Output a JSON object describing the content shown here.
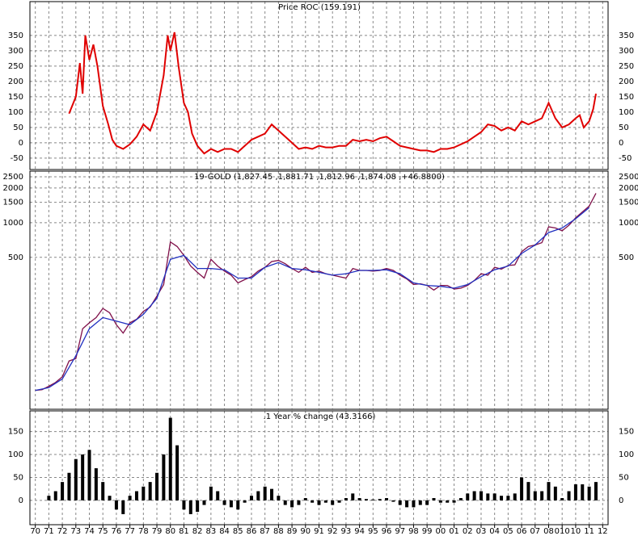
{
  "chart_data": [
    {
      "type": "line",
      "title": "Price ROC (159.191)",
      "xlim": [
        1969.6,
        2012.4
      ],
      "ylim": [
        -87,
        460
      ],
      "yticks": [
        -50,
        0,
        50,
        100,
        150,
        200,
        250,
        300,
        350
      ],
      "grid": true,
      "x": [
        1972.5,
        1973.0,
        1973.3,
        1973.5,
        1973.7,
        1974.0,
        1974.3,
        1974.6,
        1975.0,
        1975.4,
        1975.7,
        1976.0,
        1976.5,
        1977.0,
        1977.5,
        1978.0,
        1978.5,
        1979.0,
        1979.5,
        1979.8,
        1980.0,
        1980.3,
        1980.6,
        1981.0,
        1981.3,
        1981.6,
        1982.0,
        1982.5,
        1983.0,
        1983.5,
        1984.0,
        1984.5,
        1985.0,
        1985.5,
        1986.0,
        1986.5,
        1987.0,
        1987.5,
        1988.0,
        1988.5,
        1989.0,
        1989.5,
        1990.0,
        1990.5,
        1991.0,
        1991.5,
        1992.0,
        1992.5,
        1993.0,
        1993.5,
        1994.0,
        1994.5,
        1995.0,
        1995.5,
        1996.0,
        1996.5,
        1997.0,
        1997.5,
        1998.0,
        1998.5,
        1999.0,
        1999.5,
        2000.0,
        2000.5,
        2001.0,
        2001.5,
        2002.0,
        2002.5,
        2003.0,
        2003.5,
        2004.0,
        2004.5,
        2005.0,
        2005.5,
        2006.0,
        2006.5,
        2007.0,
        2007.5,
        2008.0,
        2008.5,
        2009.0,
        2009.5,
        2010.0,
        2010.3,
        2010.6,
        2011.0,
        2011.3,
        2011.5
      ],
      "series": [
        {
          "color": "#e00000",
          "values": [
            95,
            150,
            260,
            160,
            350,
            270,
            320,
            250,
            120,
            60,
            10,
            -10,
            -20,
            -5,
            20,
            60,
            40,
            100,
            220,
            350,
            300,
            360,
            250,
            130,
            100,
            30,
            -10,
            -35,
            -20,
            -30,
            -20,
            -20,
            -30,
            -10,
            10,
            20,
            30,
            60,
            40,
            20,
            0,
            -20,
            -15,
            -20,
            -10,
            -15,
            -15,
            -10,
            -10,
            10,
            5,
            10,
            5,
            15,
            20,
            5,
            -10,
            -15,
            -20,
            -25,
            -25,
            -30,
            -20,
            -20,
            -15,
            -5,
            5,
            20,
            35,
            60,
            55,
            40,
            50,
            40,
            70,
            60,
            70,
            80,
            130,
            80,
            50,
            60,
            80,
            90,
            50,
            70,
            110,
            160
          ]
        }
      ]
    },
    {
      "type": "line",
      "title": "19-GOLD (1,827.45 ,1,881.71 ,1,812.96 ,1,874.08 ,+46.8800)",
      "xlim": [
        1969.6,
        2012.4
      ],
      "ylim": [
        24,
        2800
      ],
      "log_scale": true,
      "yticks": [
        500,
        1000,
        1500,
        2000,
        2500
      ],
      "grid": true,
      "series": [
        {
          "color": "#80104a",
          "x": [
            1970.0,
            1970.5,
            1971.0,
            1971.5,
            1972.0,
            1972.5,
            1973.0,
            1973.5,
            1974.0,
            1974.5,
            1975.0,
            1975.5,
            1976.0,
            1976.5,
            1977.0,
            1977.5,
            1978.0,
            1978.5,
            1979.0,
            1979.5,
            1980.0,
            1980.5,
            1981.0,
            1981.5,
            1982.0,
            1982.5,
            1983.0,
            1983.5,
            1984.0,
            1984.5,
            1985.0,
            1985.5,
            1986.0,
            1986.5,
            1987.0,
            1987.5,
            1988.0,
            1988.5,
            1989.0,
            1989.5,
            1990.0,
            1990.5,
            1991.0,
            1991.5,
            1992.0,
            1992.5,
            1993.0,
            1993.5,
            1994.0,
            1994.5,
            1995.0,
            1995.5,
            1996.0,
            1996.5,
            1997.0,
            1997.5,
            1998.0,
            1998.5,
            1999.0,
            1999.5,
            2000.0,
            2000.5,
            2001.0,
            2001.5,
            2002.0,
            2002.5,
            2003.0,
            2003.5,
            2004.0,
            2004.5,
            2005.0,
            2005.5,
            2006.0,
            2006.5,
            2007.0,
            2007.5,
            2008.0,
            2008.5,
            2009.0,
            2009.5,
            2010.0,
            2010.5,
            2011.0,
            2011.5
          ],
          "values": [
            35,
            35.5,
            38,
            41,
            46,
            63,
            66,
            120,
            135,
            150,
            180,
            165,
            130,
            110,
            135,
            145,
            170,
            185,
            230,
            290,
            680,
            620,
            520,
            420,
            370,
            330,
            480,
            420,
            380,
            350,
            300,
            320,
            340,
            380,
            410,
            460,
            470,
            440,
            400,
            370,
            410,
            370,
            380,
            360,
            350,
            340,
            330,
            400,
            385,
            385,
            380,
            385,
            400,
            385,
            350,
            325,
            290,
            295,
            285,
            260,
            285,
            285,
            265,
            270,
            285,
            315,
            360,
            350,
            410,
            395,
            425,
            430,
            560,
            620,
            640,
            670,
            920,
            900,
            850,
            950,
            1100,
            1240,
            1390,
            1800
          ]
        },
        {
          "color": "#2030c0",
          "x": [
            1970,
            1971,
            1972,
            1973,
            1974,
            1975,
            1976,
            1977,
            1978,
            1979,
            1980,
            1981,
            1982,
            1983,
            1984,
            1985,
            1986,
            1987,
            1988,
            1989,
            1990,
            1991,
            1992,
            1993,
            1994,
            1995,
            1996,
            1997,
            1998,
            1999,
            2000,
            2001,
            2002,
            2003,
            2004,
            2005,
            2006,
            2007,
            2008,
            2009,
            2010,
            2011
          ],
          "values": [
            35,
            37,
            44,
            70,
            120,
            150,
            140,
            130,
            160,
            220,
            480,
            520,
            400,
            400,
            390,
            330,
            330,
            410,
            450,
            400,
            390,
            370,
            350,
            360,
            385,
            385,
            390,
            360,
            300,
            285,
            280,
            270,
            290,
            340,
            390,
            420,
            540,
            640,
            820,
            900,
            1080,
            1350
          ]
        }
      ]
    },
    {
      "type": "bar",
      "title": ".1 Year % change (43.3166)",
      "xlim": [
        1969.6,
        2012.4
      ],
      "ylim": [
        -53,
        195
      ],
      "yticks": [
        0,
        50,
        100,
        150
      ],
      "grid": true,
      "color": "#000000",
      "xticks": [
        {
          "value": 1970,
          "label": "70"
        },
        {
          "value": 1971,
          "label": "71"
        },
        {
          "value": 1972,
          "label": "72"
        },
        {
          "value": 1973,
          "label": "73"
        },
        {
          "value": 1974,
          "label": "74"
        },
        {
          "value": 1975,
          "label": "75"
        },
        {
          "value": 1976,
          "label": "76"
        },
        {
          "value": 1977,
          "label": "77"
        },
        {
          "value": 1978,
          "label": "78"
        },
        {
          "value": 1979,
          "label": "79"
        },
        {
          "value": 1980,
          "label": "80"
        },
        {
          "value": 1981,
          "label": "81"
        },
        {
          "value": 1982,
          "label": "82"
        },
        {
          "value": 1983,
          "label": "83"
        },
        {
          "value": 1984,
          "label": "84"
        },
        {
          "value": 1985,
          "label": "85"
        },
        {
          "value": 1986,
          "label": "86"
        },
        {
          "value": 1987,
          "label": "87"
        },
        {
          "value": 1988,
          "label": "88"
        },
        {
          "value": 1989,
          "label": "89"
        },
        {
          "value": 1990,
          "label": "90"
        },
        {
          "value": 1991,
          "label": "91"
        },
        {
          "value": 1992,
          "label": "92"
        },
        {
          "value": 1993,
          "label": "93"
        },
        {
          "value": 1994,
          "label": "94"
        },
        {
          "value": 1995,
          "label": "95"
        },
        {
          "value": 1996,
          "label": "96"
        },
        {
          "value": 1997,
          "label": "97"
        },
        {
          "value": 1998,
          "label": "98"
        },
        {
          "value": 1999,
          "label": "99"
        },
        {
          "value": 2000,
          "label": "00"
        },
        {
          "value": 2001,
          "label": "01"
        },
        {
          "value": 2002,
          "label": "02"
        },
        {
          "value": 2003,
          "label": "03"
        },
        {
          "value": 2004,
          "label": "04"
        },
        {
          "value": 2005,
          "label": "05"
        },
        {
          "value": 2006,
          "label": "06"
        },
        {
          "value": 2007,
          "label": "07"
        },
        {
          "value": 2008,
          "label": "08"
        },
        {
          "value": 2009,
          "label": "010"
        },
        {
          "value": 2010,
          "label": "10"
        },
        {
          "value": 2011,
          "label": "11"
        },
        {
          "value": 2012,
          "label": "12"
        }
      ],
      "x": [
        1971.0,
        1971.5,
        1972.0,
        1972.5,
        1973.0,
        1973.5,
        1974.0,
        1974.5,
        1975.0,
        1975.5,
        1976.0,
        1976.5,
        1977.0,
        1977.5,
        1978.0,
        1978.5,
        1979.0,
        1979.5,
        1980.0,
        1980.5,
        1981.0,
        1981.5,
        1982.0,
        1982.5,
        1983.0,
        1983.5,
        1984.0,
        1984.5,
        1985.0,
        1985.5,
        1986.0,
        1986.5,
        1987.0,
        1987.5,
        1988.0,
        1988.5,
        1989.0,
        1989.5,
        1990.0,
        1990.5,
        1991.0,
        1991.5,
        1992.0,
        1992.5,
        1993.0,
        1993.5,
        1994.0,
        1994.5,
        1995.0,
        1995.5,
        1996.0,
        1996.5,
        1997.0,
        1997.5,
        1998.0,
        1998.5,
        1999.0,
        1999.5,
        2000.0,
        2000.5,
        2001.0,
        2001.5,
        2002.0,
        2002.5,
        2003.0,
        2003.5,
        2004.0,
        2004.5,
        2005.0,
        2005.5,
        2006.0,
        2006.5,
        2007.0,
        2007.5,
        2008.0,
        2008.5,
        2009.0,
        2009.5,
        2010.0,
        2010.5,
        2011.0,
        2011.5
      ],
      "values": [
        10,
        20,
        40,
        60,
        90,
        100,
        110,
        70,
        40,
        10,
        -20,
        -30,
        10,
        20,
        30,
        40,
        60,
        100,
        180,
        120,
        -20,
        -30,
        -25,
        -10,
        30,
        20,
        -10,
        -15,
        -20,
        -5,
        10,
        20,
        30,
        25,
        10,
        -10,
        -15,
        -10,
        5,
        -5,
        -10,
        -5,
        -10,
        -5,
        5,
        15,
        5,
        3,
        2,
        3,
        5,
        -3,
        -10,
        -15,
        -15,
        -10,
        -10,
        5,
        -5,
        -5,
        -5,
        5,
        15,
        20,
        20,
        15,
        15,
        10,
        10,
        15,
        50,
        40,
        20,
        20,
        40,
        30,
        5,
        20,
        35,
        35,
        30,
        40
      ]
    }
  ]
}
